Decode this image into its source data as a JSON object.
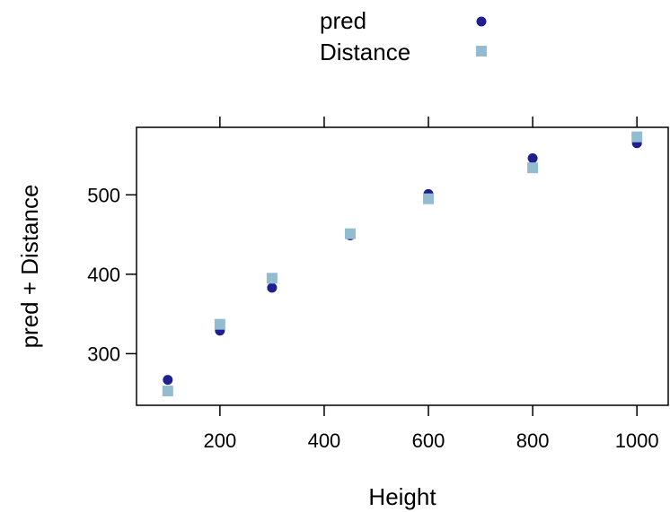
{
  "chart_data": {
    "type": "scatter",
    "xlabel": "Height",
    "ylabel": "pred + Distance",
    "xlim": [
      40,
      1060
    ],
    "ylim": [
      235,
      585
    ],
    "xticks": [
      200,
      400,
      600,
      800,
      1000
    ],
    "xtick_labels": [
      "200",
      "400",
      "600",
      "800",
      "1000"
    ],
    "yticks": [
      300,
      400,
      500
    ],
    "ytick_labels": [
      "300",
      "400",
      "500"
    ],
    "grid": false,
    "legend_position": "top",
    "series": [
      {
        "name": "pred",
        "marker": "circle",
        "color": "#1f1f8f",
        "x": [
          100,
          200,
          300,
          450,
          600,
          800,
          1000
        ],
        "y": [
          267,
          329,
          383,
          449,
          501,
          546,
          565
        ]
      },
      {
        "name": "Distance",
        "marker": "square",
        "color": "#93bcd1",
        "x": [
          100,
          200,
          300,
          450,
          600,
          800,
          1000
        ],
        "y": [
          253,
          337,
          395,
          451,
          495,
          534,
          573
        ]
      }
    ]
  }
}
